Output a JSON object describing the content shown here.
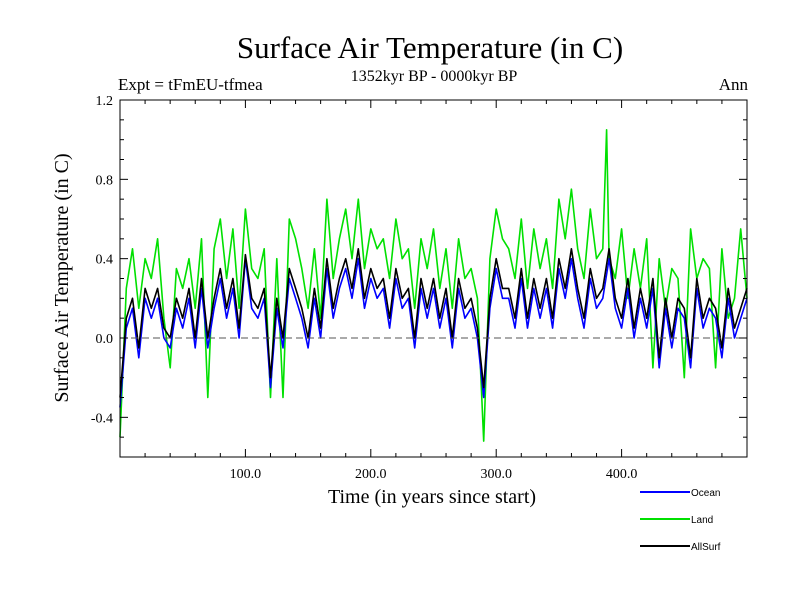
{
  "header": {
    "title": "Surface Air Temperature (in C)",
    "experiment": "Expt = tFmEU-tfmea",
    "period": "1352kyr BP - 0000kyr BP",
    "season": "Ann"
  },
  "chart_data": {
    "type": "line",
    "title": "Surface Air Temperature (in C)",
    "xlabel": "Time (in years since start)",
    "ylabel": "Surface Air Temperature (in C)",
    "xlim": [
      0,
      500
    ],
    "ylim": [
      -0.6,
      1.2
    ],
    "x_ticks": [
      {
        "value": 100,
        "label": "100.0"
      },
      {
        "value": 200,
        "label": "200.0"
      },
      {
        "value": 300,
        "label": "300.0"
      },
      {
        "value": 400,
        "label": "400.0"
      }
    ],
    "y_ticks": [
      {
        "value": -0.4,
        "label": "-0.4"
      },
      {
        "value": 0.0,
        "label": "0.0"
      },
      {
        "value": 0.4,
        "label": "0.4"
      },
      {
        "value": 0.8,
        "label": "0.8"
      },
      {
        "value": 1.2,
        "label": "1.2"
      }
    ],
    "reference_line": {
      "y": 0.0,
      "style": "dashed"
    },
    "legend_position": "bottom-right",
    "series": [
      {
        "name": "Land",
        "color": "#00e000",
        "x": [
          0,
          5,
          10,
          15,
          20,
          25,
          30,
          35,
          40,
          45,
          50,
          55,
          60,
          65,
          70,
          75,
          80,
          85,
          90,
          95,
          100,
          105,
          110,
          115,
          120,
          125,
          130,
          135,
          140,
          145,
          150,
          155,
          160,
          165,
          170,
          175,
          180,
          185,
          190,
          195,
          200,
          205,
          210,
          215,
          220,
          225,
          230,
          235,
          240,
          245,
          250,
          255,
          260,
          265,
          270,
          275,
          280,
          285,
          290,
          295,
          300,
          305,
          310,
          315,
          320,
          325,
          330,
          335,
          340,
          345,
          350,
          355,
          360,
          365,
          370,
          375,
          380,
          385,
          388,
          390,
          395,
          400,
          405,
          410,
          415,
          420,
          425,
          430,
          435,
          440,
          445,
          450,
          455,
          460,
          465,
          470,
          475,
          480,
          485,
          490,
          495,
          500
        ],
        "values": [
          -0.5,
          0.25,
          0.45,
          0.15,
          0.4,
          0.3,
          0.5,
          0.1,
          -0.15,
          0.35,
          0.25,
          0.4,
          0.15,
          0.5,
          -0.3,
          0.45,
          0.6,
          0.3,
          0.55,
          0.15,
          0.65,
          0.35,
          0.3,
          0.45,
          -0.3,
          0.4,
          -0.3,
          0.6,
          0.5,
          0.35,
          0.15,
          0.45,
          0.1,
          0.7,
          0.3,
          0.5,
          0.65,
          0.4,
          0.7,
          0.35,
          0.55,
          0.45,
          0.5,
          0.3,
          0.6,
          0.4,
          0.45,
          0.15,
          0.5,
          0.35,
          0.55,
          0.25,
          0.45,
          0.15,
          0.5,
          0.3,
          0.35,
          0.2,
          -0.52,
          0.4,
          0.65,
          0.5,
          0.45,
          0.3,
          0.6,
          0.25,
          0.55,
          0.35,
          0.5,
          0.25,
          0.7,
          0.5,
          0.75,
          0.45,
          0.3,
          0.65,
          0.4,
          0.45,
          1.05,
          0.4,
          0.3,
          0.55,
          0.2,
          0.45,
          0.25,
          0.5,
          -0.15,
          0.4,
          0.15,
          0.35,
          0.3,
          -0.2,
          0.55,
          0.3,
          0.4,
          0.35,
          -0.15,
          0.45,
          0.1,
          0.2,
          0.55,
          0.2
        ]
      },
      {
        "name": "Ocean",
        "color": "#0000ff",
        "x": [
          0,
          5,
          10,
          15,
          20,
          25,
          30,
          35,
          40,
          45,
          50,
          55,
          60,
          65,
          70,
          75,
          80,
          85,
          90,
          95,
          100,
          105,
          110,
          115,
          120,
          125,
          130,
          135,
          140,
          145,
          150,
          155,
          160,
          165,
          170,
          175,
          180,
          185,
          190,
          195,
          200,
          205,
          210,
          215,
          220,
          225,
          230,
          235,
          240,
          245,
          250,
          255,
          260,
          265,
          270,
          275,
          280,
          285,
          290,
          295,
          300,
          305,
          310,
          315,
          320,
          325,
          330,
          335,
          340,
          345,
          350,
          355,
          360,
          365,
          370,
          375,
          380,
          385,
          390,
          395,
          400,
          405,
          410,
          415,
          420,
          425,
          430,
          435,
          440,
          445,
          450,
          455,
          460,
          465,
          470,
          475,
          480,
          485,
          490,
          495,
          500
        ],
        "values": [
          -0.35,
          0.05,
          0.15,
          -0.1,
          0.2,
          0.1,
          0.2,
          0.0,
          -0.05,
          0.15,
          0.05,
          0.2,
          -0.05,
          0.25,
          -0.05,
          0.15,
          0.3,
          0.1,
          0.25,
          0.0,
          0.4,
          0.15,
          0.1,
          0.2,
          -0.25,
          0.15,
          -0.05,
          0.3,
          0.2,
          0.1,
          -0.05,
          0.2,
          0.0,
          0.35,
          0.1,
          0.25,
          0.35,
          0.2,
          0.4,
          0.15,
          0.3,
          0.2,
          0.25,
          0.05,
          0.3,
          0.15,
          0.2,
          -0.05,
          0.25,
          0.1,
          0.25,
          0.05,
          0.2,
          -0.05,
          0.25,
          0.1,
          0.15,
          0.0,
          -0.3,
          0.15,
          0.35,
          0.2,
          0.2,
          0.05,
          0.3,
          0.05,
          0.25,
          0.1,
          0.25,
          0.05,
          0.35,
          0.2,
          0.4,
          0.2,
          0.05,
          0.3,
          0.15,
          0.2,
          0.4,
          0.15,
          0.05,
          0.25,
          0.0,
          0.2,
          0.05,
          0.25,
          -0.15,
          0.15,
          -0.05,
          0.15,
          0.1,
          -0.15,
          0.25,
          0.05,
          0.15,
          0.1,
          -0.1,
          0.2,
          0.0,
          0.1,
          0.2
        ]
      },
      {
        "name": "AllSurf",
        "color": "#000000",
        "x": [
          0,
          5,
          10,
          15,
          20,
          25,
          30,
          35,
          40,
          45,
          50,
          55,
          60,
          65,
          70,
          75,
          80,
          85,
          90,
          95,
          100,
          105,
          110,
          115,
          120,
          125,
          130,
          135,
          140,
          145,
          150,
          155,
          160,
          165,
          170,
          175,
          180,
          185,
          190,
          195,
          200,
          205,
          210,
          215,
          220,
          225,
          230,
          235,
          240,
          245,
          250,
          255,
          260,
          265,
          270,
          275,
          280,
          285,
          290,
          295,
          300,
          305,
          310,
          315,
          320,
          325,
          330,
          335,
          340,
          345,
          350,
          355,
          360,
          365,
          370,
          375,
          380,
          385,
          390,
          395,
          400,
          405,
          410,
          415,
          420,
          425,
          430,
          435,
          440,
          445,
          450,
          455,
          460,
          465,
          470,
          475,
          480,
          485,
          490,
          495,
          500
        ],
        "values": [
          -0.3,
          0.1,
          0.2,
          -0.05,
          0.25,
          0.15,
          0.25,
          0.05,
          0.0,
          0.2,
          0.1,
          0.25,
          0.0,
          0.3,
          0.0,
          0.2,
          0.35,
          0.15,
          0.3,
          0.05,
          0.42,
          0.2,
          0.15,
          0.25,
          -0.2,
          0.2,
          0.0,
          0.35,
          0.25,
          0.15,
          0.0,
          0.25,
          0.05,
          0.4,
          0.15,
          0.3,
          0.4,
          0.25,
          0.45,
          0.2,
          0.35,
          0.25,
          0.3,
          0.1,
          0.35,
          0.2,
          0.25,
          0.0,
          0.3,
          0.15,
          0.3,
          0.1,
          0.25,
          0.0,
          0.3,
          0.15,
          0.2,
          0.05,
          -0.25,
          0.2,
          0.4,
          0.25,
          0.25,
          0.1,
          0.35,
          0.1,
          0.3,
          0.15,
          0.3,
          0.1,
          0.4,
          0.25,
          0.45,
          0.25,
          0.1,
          0.35,
          0.2,
          0.25,
          0.45,
          0.2,
          0.1,
          0.3,
          0.05,
          0.25,
          0.1,
          0.3,
          -0.1,
          0.2,
          0.0,
          0.2,
          0.15,
          -0.1,
          0.3,
          0.1,
          0.2,
          0.15,
          -0.05,
          0.25,
          0.05,
          0.15,
          0.25
        ]
      }
    ],
    "legend": [
      {
        "label": "Ocean",
        "color": "#0000ff"
      },
      {
        "label": "Land",
        "color": "#00e000"
      },
      {
        "label": "AllSurf",
        "color": "#000000"
      }
    ]
  }
}
